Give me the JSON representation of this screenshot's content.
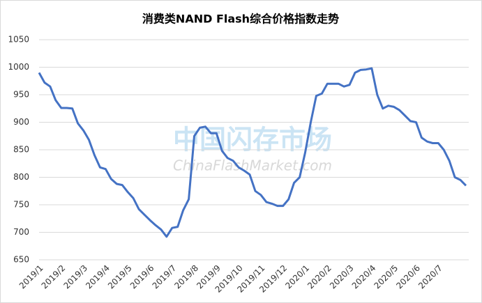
{
  "chart_data": {
    "type": "line",
    "title": "消费类NAND Flash综合价格指数走势",
    "watermark": [
      "中国闪存市场",
      "ChinaFlashMarket.com"
    ],
    "categories": [
      "2019/1",
      null,
      null,
      null,
      "2019/2",
      null,
      null,
      null,
      "2019/3",
      null,
      null,
      null,
      "2019/4",
      null,
      null,
      null,
      "2019/5",
      null,
      null,
      null,
      "2019/6",
      null,
      null,
      null,
      "2019/7",
      null,
      null,
      null,
      "2019/8",
      null,
      null,
      null,
      "2019/9",
      null,
      null,
      null,
      "2019/10",
      null,
      null,
      null,
      "2019/11",
      null,
      null,
      null,
      "2019/12",
      null,
      null,
      null,
      "2020/1",
      null,
      null,
      null,
      "2020/2",
      null,
      null,
      null,
      "2020/3",
      null,
      null,
      null,
      "2020/4",
      null,
      null,
      null,
      "2020/5",
      null,
      null,
      null,
      "2020/6",
      null,
      null,
      null,
      "2020/7",
      null,
      null,
      null,
      null,
      null
    ],
    "series": [
      {
        "name": "消费类NAND Flash综合价格指数",
        "color": "#4472c4",
        "values": [
          990,
          972,
          965,
          940,
          926,
          926,
          925,
          898,
          885,
          868,
          840,
          818,
          815,
          797,
          788,
          786,
          773,
          762,
          742,
          732,
          722,
          713,
          705,
          692,
          708,
          710,
          740,
          760,
          875,
          890,
          892,
          880,
          880,
          848,
          835,
          830,
          818,
          812,
          805,
          775,
          768,
          755,
          752,
          748,
          748,
          760,
          790,
          800,
          845,
          900,
          948,
          952,
          970,
          970,
          970,
          965,
          968,
          990,
          995,
          996,
          998,
          950,
          925,
          930,
          928,
          922,
          912,
          902,
          900,
          872,
          865,
          862,
          862,
          850,
          830,
          800,
          795,
          785
        ]
      }
    ],
    "ylim": [
      650,
      1050
    ],
    "yticks": [
      650,
      700,
      750,
      800,
      850,
      900,
      950,
      1000,
      1050
    ],
    "grid": true
  }
}
